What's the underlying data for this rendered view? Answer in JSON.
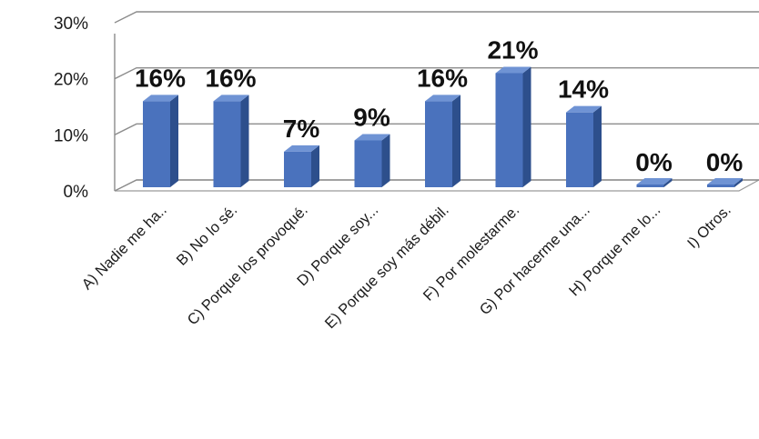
{
  "chart_data": {
    "type": "bar",
    "categories": [
      "A)  Nadie me ha..",
      "B)  No lo sé.",
      "C)  Porque los provoqué.",
      "D)  Porque soy...",
      "E)  Porque soy más débil.",
      "F)  Por molestarme.",
      "G)  Por hacerme una...",
      "H)  Porque me lo...",
      "I)  Otros."
    ],
    "values": [
      16,
      16,
      7,
      9,
      16,
      21,
      14,
      0,
      0
    ],
    "data_labels": [
      "16%",
      "16%",
      "7%",
      "9%",
      "16%",
      "21%",
      "14%",
      "0%",
      "0%"
    ],
    "y_ticks": [
      "0%",
      "10%",
      "20%",
      "30%"
    ],
    "ylim": [
      0,
      30
    ],
    "title": "",
    "xlabel": "",
    "ylabel": "",
    "grid": true,
    "legend": "none",
    "colors": {
      "bar_front": "#4a72bd",
      "bar_side": "#2d4f8c",
      "bar_top": "#6f93d4"
    }
  }
}
